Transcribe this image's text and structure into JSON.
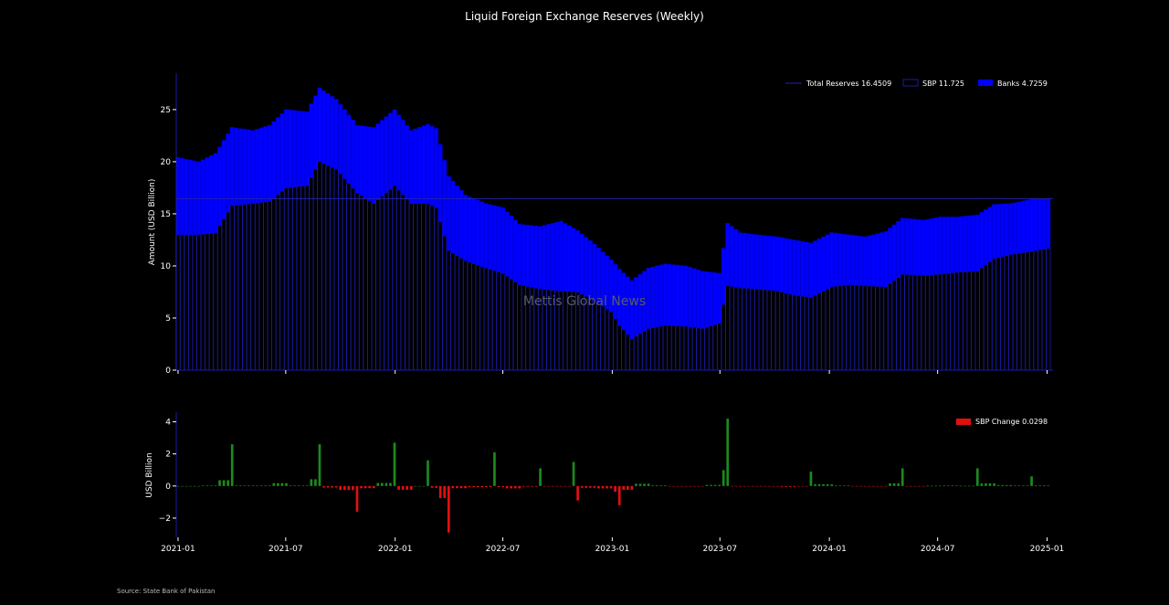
{
  "title": "Liquid Foreign Exchange Reserves (Weekly)",
  "source": "Source: State Bank of Pakistan",
  "watermark": "Mettis Global News",
  "colors": {
    "banks": "#0000ff",
    "sbp_edge": "#1a1aa8",
    "total_line": "#2222aa",
    "positive": "#1c8a1c",
    "negative": "#e01010",
    "background": "#000000"
  },
  "chart_data": [
    {
      "type": "bar",
      "subtype": "stacked",
      "ylabel": "Amount (USD Billion)",
      "ylim": [
        0,
        28.5
      ],
      "yticks": [
        0,
        5,
        10,
        15,
        20,
        25
      ],
      "xlim": [
        "2020-12-29",
        "2025-01-11"
      ],
      "xticks": [
        "2021-01",
        "2021-07",
        "2022-01",
        "2022-07",
        "2023-01",
        "2023-07",
        "2024-01",
        "2024-07",
        "2025-01"
      ],
      "grid": false,
      "legend_position": "top-right",
      "legend": [
        {
          "label": "Total Reserves 16.4509",
          "type": "line"
        },
        {
          "label": "SBP 11.725",
          "type": "outline"
        },
        {
          "label": "Banks 4.7259",
          "type": "fill"
        }
      ],
      "total_latest": 16.4509,
      "series": [
        {
          "name": "SBP",
          "key": "sbp"
        },
        {
          "name": "Banks",
          "key": "banks"
        }
      ],
      "anchors": {
        "dates": [
          "2021-01-01",
          "2021-02-05",
          "2021-03-05",
          "2021-04-02",
          "2021-05-07",
          "2021-06-04",
          "2021-07-02",
          "2021-08-06",
          "2021-08-27",
          "2021-09-24",
          "2021-10-29",
          "2021-11-26",
          "2021-12-31",
          "2022-01-28",
          "2022-02-25",
          "2022-03-11",
          "2022-04-01",
          "2022-04-29",
          "2022-06-03",
          "2022-07-01",
          "2022-07-29",
          "2022-09-02",
          "2022-10-07",
          "2022-11-04",
          "2022-12-02",
          "2022-12-30",
          "2023-01-13",
          "2023-02-03",
          "2023-03-03",
          "2023-03-31",
          "2023-05-05",
          "2023-06-02",
          "2023-06-30",
          "2023-07-14",
          "2023-08-04",
          "2023-09-01",
          "2023-10-06",
          "2023-11-03",
          "2023-12-01",
          "2024-01-05",
          "2024-02-02",
          "2024-03-01",
          "2024-04-05",
          "2024-05-03",
          "2024-06-07",
          "2024-07-05",
          "2024-08-02",
          "2024-09-06",
          "2024-10-04",
          "2024-11-01",
          "2024-12-06",
          "2025-01-03"
        ],
        "sbp": [
          13.0,
          13.0,
          13.2,
          15.8,
          16.0,
          16.2,
          17.5,
          17.7,
          20.0,
          19.3,
          17.0,
          16.0,
          17.7,
          16.0,
          16.0,
          15.6,
          11.5,
          10.5,
          9.8,
          9.3,
          8.2,
          7.8,
          7.6,
          7.5,
          6.7,
          5.6,
          4.3,
          3.0,
          4.0,
          4.3,
          4.2,
          4.0,
          4.5,
          8.1,
          7.9,
          7.8,
          7.6,
          7.2,
          7.0,
          8.0,
          8.2,
          8.1,
          8.0,
          9.2,
          9.1,
          9.2,
          9.4,
          9.5,
          10.7,
          11.1,
          11.4,
          11.7
        ],
        "total": [
          20.4,
          20.0,
          20.8,
          23.3,
          23.0,
          23.5,
          25.0,
          24.8,
          27.1,
          26.0,
          23.5,
          23.3,
          25.0,
          23.0,
          23.6,
          23.2,
          18.6,
          16.8,
          16.0,
          15.6,
          14.0,
          13.8,
          14.3,
          13.4,
          12.1,
          10.6,
          9.7,
          8.6,
          9.8,
          10.2,
          10.0,
          9.5,
          9.3,
          14.1,
          13.2,
          13.0,
          12.8,
          12.5,
          12.2,
          13.2,
          13.0,
          12.8,
          13.3,
          14.6,
          14.4,
          14.7,
          14.7,
          14.9,
          15.9,
          16.0,
          16.4,
          16.45
        ]
      }
    },
    {
      "type": "bar",
      "ylabel": "USD Billion",
      "ylim": [
        -3.2,
        4.6
      ],
      "yticks": [
        -2,
        0,
        2,
        4
      ],
      "legend_position": "top-right",
      "legend": [
        {
          "label": "SBP Change 0.0298",
          "type": "fill"
        }
      ],
      "series": [
        {
          "name": "SBP Change",
          "key": "sbp_change"
        }
      ],
      "notable_changes": [
        {
          "date": "2021-04-02",
          "value": 2.6
        },
        {
          "date": "2021-08-27",
          "value": 2.6
        },
        {
          "date": "2021-10-29",
          "value": -1.6
        },
        {
          "date": "2021-12-31",
          "value": 2.7
        },
        {
          "date": "2022-02-25",
          "value": 1.6
        },
        {
          "date": "2022-04-01",
          "value": -2.9
        },
        {
          "date": "2022-06-17",
          "value": 2.1
        },
        {
          "date": "2022-09-02",
          "value": 1.1
        },
        {
          "date": "2022-10-28",
          "value": 1.5
        },
        {
          "date": "2022-11-04",
          "value": -0.9
        },
        {
          "date": "2023-01-13",
          "value": -1.2
        },
        {
          "date": "2023-07-14",
          "value": 4.2
        },
        {
          "date": "2023-12-01",
          "value": 0.9
        },
        {
          "date": "2024-05-03",
          "value": 1.1
        },
        {
          "date": "2024-09-06",
          "value": 1.1
        },
        {
          "date": "2024-12-06",
          "value": 0.6
        }
      ],
      "latest_change": 0.0298
    }
  ]
}
